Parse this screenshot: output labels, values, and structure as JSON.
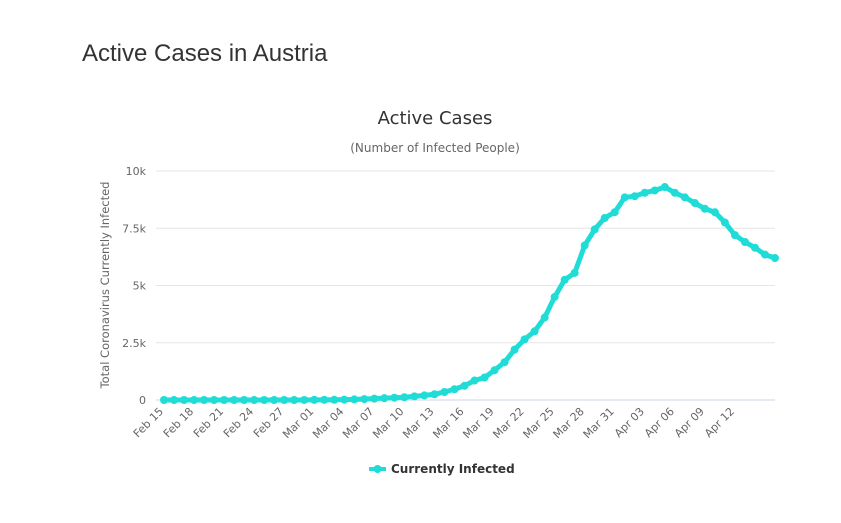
{
  "page": {
    "title": "Active Cases in Austria"
  },
  "colors": {
    "series": "#1fdcd6",
    "grid": "#e6e6e6",
    "text": "#333333",
    "muted": "#666666"
  },
  "chart_data": {
    "type": "line",
    "title": "Active Cases",
    "subtitle": "(Number of Infected People)",
    "xlabel": "",
    "ylabel": "Total Coronavirus Currently Infected",
    "ylim": [
      0,
      10000
    ],
    "yticks": [
      {
        "value": 0,
        "label": "0"
      },
      {
        "value": 2500,
        "label": "2.5k"
      },
      {
        "value": 5000,
        "label": "5k"
      },
      {
        "value": 7500,
        "label": "7.5k"
      },
      {
        "value": 10000,
        "label": "10k"
      }
    ],
    "xtick_labels": [
      "Feb 15",
      "Feb 18",
      "Feb 21",
      "Feb 24",
      "Feb 27",
      "Mar 01",
      "Mar 04",
      "Mar 07",
      "Mar 10",
      "Mar 13",
      "Mar 16",
      "Mar 19",
      "Mar 22",
      "Mar 25",
      "Mar 28",
      "Mar 31",
      "Apr 03",
      "Apr 06",
      "Apr 09",
      "Apr 12"
    ],
    "xtick_step": 3,
    "legend": {
      "position": "bottom-center"
    },
    "series": [
      {
        "name": "Currently Infected",
        "values": [
          0,
          0,
          0,
          0,
          0,
          0,
          0,
          0,
          0,
          0,
          0,
          0,
          0,
          0,
          2,
          5,
          8,
          10,
          15,
          25,
          40,
          60,
          80,
          100,
          120,
          160,
          200,
          250,
          350,
          470,
          620,
          850,
          980,
          1300,
          1650,
          2200,
          2650,
          3000,
          3600,
          4500,
          5250,
          5550,
          6750,
          7450,
          7950,
          8200,
          8850,
          8900,
          9050,
          9150,
          9300,
          9050,
          8850,
          8600,
          8350,
          8200,
          7750,
          7200,
          6900,
          6650,
          6350,
          6200
        ]
      }
    ]
  }
}
